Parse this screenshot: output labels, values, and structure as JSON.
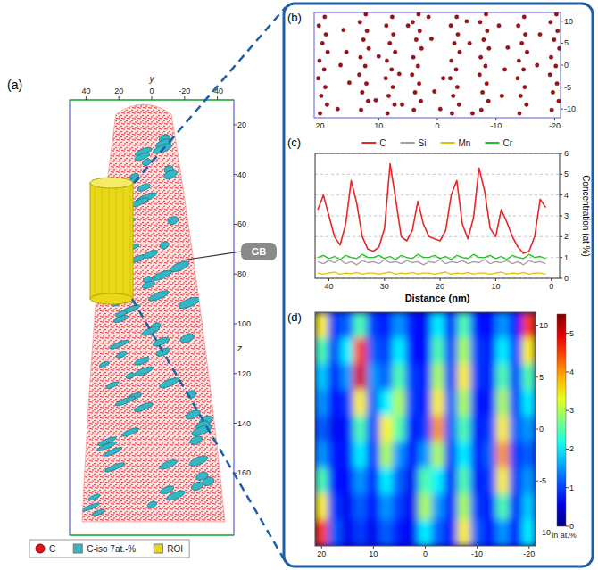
{
  "chart_data": [
    {
      "type": "reconstruction",
      "panel_label": "(a)",
      "x_label": "y",
      "xlim": [
        50,
        -50
      ],
      "xticks": [
        40,
        20,
        0,
        -20,
        -40
      ],
      "z_label": "z",
      "zlim": [
        10,
        185
      ],
      "zticks": [
        20,
        40,
        60,
        80,
        100,
        120,
        140,
        160
      ],
      "annotation": "GB",
      "series": [
        {
          "name": "C",
          "color": "#e0141e"
        },
        {
          "name": "C-iso 7at.-%",
          "color": "#35b6c4"
        },
        {
          "name": "ROI",
          "color": "#e9d81a"
        }
      ]
    },
    {
      "type": "scatter",
      "panel_label": "(b)",
      "color": "#a50f15",
      "marker": "circle",
      "xlim": [
        21,
        -21
      ],
      "ylim": [
        -12,
        12
      ],
      "xticks": [
        20,
        10,
        0,
        -10,
        -20
      ],
      "yticks": [
        -10,
        -5,
        0,
        5,
        10
      ],
      "x": [
        20,
        18.8,
        19.8,
        19.1,
        20.3,
        19.3,
        20.1,
        18.7,
        19.6,
        19,
        20.2,
        19.2,
        13,
        11.8,
        12.8,
        12.1,
        13.3,
        12.3,
        13.1,
        11.7,
        12.6,
        12,
        13.2,
        12.2,
        8.5,
        7.3,
        8.3,
        7.6,
        8.8,
        7.8,
        8.6,
        7.2,
        8.1,
        7.5,
        8.7,
        7.7,
        4,
        2.8,
        3.8,
        3.1,
        4.3,
        3.3,
        4.1,
        2.7,
        3.6,
        3,
        4.2,
        3.2,
        -2.5,
        -3.7,
        -2.7,
        -3.4,
        -2.2,
        -3.2,
        -2.4,
        -3.8,
        -2.9,
        -3.5,
        -2.3,
        -3.3,
        -7.5,
        -8.7,
        -7.7,
        -8.4,
        -7.2,
        -8.2,
        -7.4,
        -8.8,
        -7.9,
        -8.5,
        -7.3,
        -8.3,
        -14,
        -15.2,
        -14.2,
        -14.9,
        -13.7,
        -14.7,
        -13.9,
        -15.3,
        -14.4,
        -15,
        -13.8,
        -14.8,
        -19.5,
        -20.7,
        -19.7,
        -20.4,
        -19.2,
        -20.2,
        -19.4,
        -20.8,
        -19.9,
        -20.5,
        -19.3,
        -20.3,
        16,
        15,
        10,
        6,
        1,
        -1,
        -5,
        -11,
        -12,
        -17,
        17,
        5,
        15.5,
        10.5,
        0.5,
        -5.5,
        -11.5,
        -17.5,
        1.5,
        -0.5,
        6.5,
        -6,
        16.5,
        -10.5
      ],
      "y": [
        -11,
        -9,
        -7,
        -5,
        -3,
        -1,
        1,
        3,
        5,
        7,
        9,
        11,
        -10.2,
        -8.2,
        -6.2,
        -4.2,
        -2.2,
        -0.2,
        1.8,
        3.8,
        5.8,
        7.8,
        9.8,
        11.6,
        -11,
        -9,
        -7,
        -5,
        -3,
        -1,
        1,
        3,
        5,
        7,
        9,
        11,
        -10.2,
        -8.2,
        -6.2,
        -4.2,
        -2.2,
        -0.2,
        1.8,
        3.8,
        5.8,
        7.8,
        9.8,
        11.6,
        -11,
        -9,
        -7,
        -5,
        -3,
        -1,
        1,
        3,
        5,
        7,
        9,
        11,
        -10.2,
        -8.2,
        -6.2,
        -4.2,
        -2.2,
        -0.2,
        1.8,
        3.8,
        5.8,
        7.8,
        9.8,
        11.6,
        -11,
        -9,
        -7,
        -5,
        -3,
        -1,
        1,
        3,
        5,
        7,
        9,
        11,
        -10.2,
        -8.2,
        -6.2,
        -4.2,
        -2.2,
        -0.2,
        1.8,
        3.8,
        5.8,
        7.8,
        9.8,
        11.6,
        8,
        -4,
        2,
        -9,
        6,
        -3,
        10,
        -7,
        4,
        0,
        -10,
        9,
        3,
        -8,
        -6,
        5,
        -1,
        7,
        11,
        -10,
        -2,
        -11,
        0,
        9
      ]
    },
    {
      "type": "line",
      "panel_label": "(c)",
      "x_label": "Distance (nm)",
      "y_label": "Concentration (at %)",
      "xlim": [
        42.5,
        -1.5
      ],
      "xticks": [
        40,
        30,
        20,
        10,
        0
      ],
      "ylim": [
        0,
        6
      ],
      "yticks": [
        0,
        1,
        2,
        3,
        4,
        5,
        6
      ],
      "grid": true,
      "legend": "top",
      "x": [
        42,
        41,
        40,
        39,
        38,
        37,
        36,
        35,
        34,
        33,
        32,
        31,
        30,
        29,
        28,
        27,
        26,
        25,
        24,
        23,
        22,
        21,
        20,
        19,
        18,
        17,
        16,
        15,
        14,
        13,
        12,
        11,
        10,
        9,
        8,
        7,
        6,
        5,
        4,
        3,
        2,
        1
      ],
      "series": [
        {
          "name": "C",
          "color": "#e8262a",
          "values": [
            3.3,
            4.0,
            3.0,
            2.0,
            1.6,
            2.6,
            4.7,
            3.6,
            2.0,
            1.4,
            1.3,
            1.5,
            2.4,
            5.5,
            3.8,
            2.0,
            1.8,
            2.3,
            3.7,
            2.6,
            2.0,
            1.9,
            1.8,
            2.3,
            4.0,
            4.7,
            2.6,
            1.9,
            2.9,
            5.3,
            4.2,
            2.4,
            2.0,
            3.3,
            2.7,
            2.0,
            1.5,
            1.2,
            1.3,
            2.0,
            3.8,
            3.4
          ]
        },
        {
          "name": "Si",
          "color": "#a0a0a0",
          "values": [
            0.8,
            0.7,
            0.85,
            0.75,
            0.9,
            0.7,
            0.8,
            0.65,
            0.85,
            0.75,
            0.8,
            0.7,
            0.9,
            0.75,
            0.8,
            0.7,
            0.85,
            0.75,
            0.8,
            0.65,
            0.8,
            0.75,
            0.9,
            0.7,
            0.8,
            0.75,
            0.85,
            0.7,
            0.8,
            0.75,
            0.9,
            0.7,
            0.8,
            0.75,
            0.85,
            0.7,
            0.8,
            0.65,
            0.85,
            0.75,
            0.8,
            0.7
          ]
        },
        {
          "name": "Mn",
          "color": "#e0c000",
          "values": [
            0.25,
            0.2,
            0.25,
            0.3,
            0.2,
            0.25,
            0.22,
            0.28,
            0.2,
            0.25,
            0.25,
            0.2,
            0.25,
            0.3,
            0.2,
            0.25,
            0.22,
            0.28,
            0.2,
            0.25,
            0.25,
            0.2,
            0.25,
            0.3,
            0.2,
            0.25,
            0.22,
            0.28,
            0.2,
            0.25,
            0.25,
            0.2,
            0.25,
            0.3,
            0.2,
            0.25,
            0.22,
            0.28,
            0.2,
            0.25,
            0.25,
            0.2
          ]
        },
        {
          "name": "Cr",
          "color": "#22c422",
          "values": [
            1.0,
            1.1,
            0.95,
            1.05,
            0.9,
            1.1,
            1.0,
            0.95,
            1.15,
            1.0,
            1.0,
            1.1,
            0.95,
            1.05,
            0.9,
            1.1,
            1.0,
            0.95,
            1.15,
            1.0,
            1.0,
            1.1,
            0.95,
            1.05,
            0.9,
            1.1,
            1.0,
            0.95,
            1.15,
            1.0,
            1.0,
            1.1,
            0.95,
            1.05,
            0.9,
            1.1,
            1.0,
            0.95,
            1.15,
            1.0,
            1.05,
            0.95
          ]
        }
      ]
    },
    {
      "type": "heatmap",
      "panel_label": "(d)",
      "xlim": [
        21.25,
        -21.25
      ],
      "ylim": [
        -11.25,
        11.25
      ],
      "xticks": [
        20,
        10,
        0,
        -10,
        -20
      ],
      "yticks": [
        -10,
        -5,
        0,
        5,
        10
      ],
      "x": [
        20,
        17.5,
        15,
        12.5,
        10,
        7.5,
        5,
        2.5,
        0,
        -2.5,
        -5,
        -7.5,
        -10,
        -12.5,
        -15,
        -17.5,
        -20
      ],
      "y": [
        10,
        7.5,
        5,
        2.5,
        0,
        -2.5,
        -5,
        -7.5,
        -10
      ],
      "cells": [
        [
          3.5,
          1.0,
          1.2,
          2.5,
          1.0,
          0.8,
          1.5,
          0.8,
          0.6,
          2.0,
          0.8,
          2.5,
          0.8,
          0.7,
          1.5,
          0.8,
          4.5
        ],
        [
          2.5,
          1.0,
          2.0,
          4.5,
          1.2,
          1.0,
          2.0,
          0.8,
          0.7,
          2.5,
          1.0,
          3.0,
          1.0,
          0.8,
          2.0,
          1.0,
          3.5
        ],
        [
          1.8,
          0.8,
          1.5,
          5.0,
          1.5,
          1.2,
          2.5,
          1.0,
          0.8,
          3.0,
          1.0,
          3.5,
          1.0,
          0.8,
          2.5,
          1.0,
          2.5
        ],
        [
          1.5,
          0.7,
          1.0,
          3.5,
          1.2,
          2.0,
          3.0,
          1.0,
          0.8,
          3.5,
          1.2,
          3.0,
          0.8,
          0.8,
          3.0,
          1.0,
          2.0
        ],
        [
          1.2,
          0.6,
          0.8,
          2.5,
          1.0,
          3.5,
          2.5,
          0.8,
          1.0,
          4.0,
          1.2,
          2.5,
          0.8,
          1.0,
          3.5,
          1.2,
          1.5
        ],
        [
          1.5,
          0.8,
          0.8,
          2.0,
          0.8,
          3.0,
          1.5,
          0.7,
          1.5,
          3.0,
          1.0,
          2.0,
          0.8,
          1.2,
          4.0,
          1.0,
          1.2
        ],
        [
          2.5,
          0.8,
          0.7,
          1.5,
          0.8,
          2.0,
          1.2,
          0.6,
          2.5,
          2.0,
          0.8,
          2.5,
          0.8,
          1.0,
          3.5,
          1.0,
          1.5
        ],
        [
          3.5,
          1.0,
          0.6,
          1.2,
          0.7,
          1.5,
          1.0,
          0.6,
          3.0,
          1.5,
          0.8,
          3.0,
          1.0,
          0.8,
          2.5,
          0.8,
          1.8
        ],
        [
          4.5,
          1.2,
          0.6,
          1.0,
          0.6,
          1.2,
          0.8,
          0.6,
          2.0,
          1.2,
          0.8,
          3.5,
          1.2,
          0.7,
          1.5,
          0.7,
          2.0
        ]
      ],
      "color_range": [
        0,
        5.5
      ],
      "color_ticks": [
        0,
        1,
        2,
        3,
        4,
        5
      ],
      "color_label": "in at.%"
    }
  ]
}
